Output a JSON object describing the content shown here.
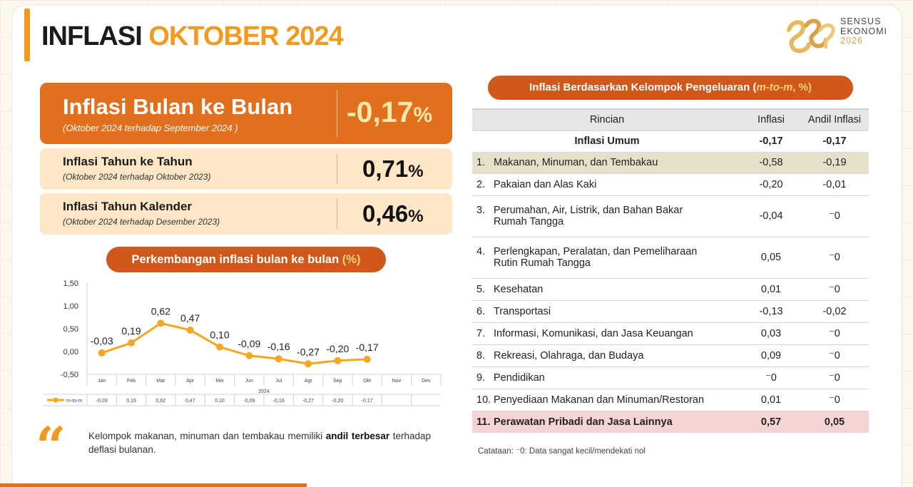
{
  "header": {
    "title_part1": "INFLASI",
    "title_part2": "OKTOBER 2024"
  },
  "logo": {
    "line1": "SENSUS",
    "line2": "EKONOMI",
    "line3": "2026"
  },
  "summary": {
    "mtm": {
      "label": "Inflasi Bulan ke Bulan",
      "sub": "(Oktober 2024 terhadap September 2024 )",
      "value": "-0,17",
      "unit": "%"
    },
    "yoy": {
      "label": "Inflasi Tahun ke Tahun",
      "sub": "(Oktober 2024 terhadap Oktober 2023)",
      "value": "0,71",
      "unit": "%"
    },
    "ytd": {
      "label": "Inflasi Tahun Kalender",
      "sub": "(Oktober 2024 terhadap Desember 2023)",
      "value": "0,46",
      "unit": "%"
    }
  },
  "chart_title": {
    "text": "Perkembangan inflasi bulan ke bulan",
    "unit": "(%)"
  },
  "chart_data": {
    "type": "line",
    "categories": [
      "Jan",
      "Feb",
      "Mar",
      "Apr",
      "Mei",
      "Jun",
      "Jul",
      "Agt",
      "Sep",
      "Okt",
      "Nov",
      "Des"
    ],
    "x_group_label": "2024",
    "series": [
      {
        "name": "m-to-m",
        "values": [
          -0.03,
          0.19,
          0.62,
          0.47,
          0.1,
          -0.09,
          -0.16,
          -0.27,
          -0.2,
          -0.17,
          null,
          null
        ],
        "labels": [
          "-0,03",
          "0,19",
          "0,62",
          "0,47",
          "0,10",
          "-0,09",
          "-0,16",
          "-0,27",
          "-0,20",
          "-0,17",
          "",
          ""
        ]
      }
    ],
    "ylim": [
      -0.5,
      1.5
    ],
    "yticks": [
      -0.5,
      0,
      0.5,
      1.0,
      1.5
    ],
    "ytick_labels": [
      "-0,50",
      "0,00",
      "0,50",
      "1,00",
      "1,50"
    ],
    "grid": false,
    "line_color": "#f5a623",
    "data_table": true
  },
  "quote": {
    "text_before": "Kelompok makanan, minuman dan tembakau memiliki ",
    "bold1": "andil",
    "bold2": "terbesar",
    "text_after": " terhadap deflasi bulanan."
  },
  "table_title": {
    "text": "Inflasi Berdasarkan Kelompok Pengeluaran (",
    "italic": "m-to-m",
    "suffix": ", %)"
  },
  "table": {
    "headers": [
      "Rincian",
      "Inflasi",
      "Andil Inflasi"
    ],
    "general": {
      "label": "Inflasi Umum",
      "inflasi": "-0,17",
      "andil": "-0,17"
    },
    "rows": [
      {
        "no": "1.",
        "name": "Makanan, Minuman, dan Tembakau",
        "inflasi": "-0,58",
        "andil": "-0,19"
      },
      {
        "no": "2.",
        "name": "Pakaian dan Alas Kaki",
        "inflasi": "-0,20",
        "andil": "-0,01"
      },
      {
        "no": "3.",
        "name": "Perumahan, Air, Listrik, dan Bahan Bakar Rumah Tangga",
        "inflasi": "-0,04",
        "andil": "⁻0"
      },
      {
        "no": "4.",
        "name": "Perlengkapan, Peralatan, dan Pemeliharaan Rutin Rumah Tangga",
        "inflasi": "0,05",
        "andil": "⁻0"
      },
      {
        "no": "5.",
        "name": "Kesehatan",
        "inflasi": "0,01",
        "andil": "⁻0"
      },
      {
        "no": "6.",
        "name": "Transportasi",
        "inflasi": "-0,13",
        "andil": "-0,02"
      },
      {
        "no": "7.",
        "name": "Informasi, Komunikasi, dan Jasa Keuangan",
        "inflasi": "0,03",
        "andil": "⁻0"
      },
      {
        "no": "8.",
        "name": "Rekreasi, Olahraga, dan Budaya",
        "inflasi": "0,09",
        "andil": "⁻0"
      },
      {
        "no": "9.",
        "name": "Pendidikan",
        "inflasi": "⁻0",
        "andil": "⁻0"
      },
      {
        "no": "10.",
        "name": "Penyediaan Makanan dan Minuman/Restoran",
        "inflasi": "0,01",
        "andil": "⁻0"
      },
      {
        "no": "11.",
        "name": "Perawatan Pribadi dan Jasa Lainnya",
        "inflasi": "0,57",
        "andil": "0,05"
      }
    ]
  },
  "note": "Catataan: ⁻0: Data sangat kecil/mendekati nol",
  "colors": {
    "accent": "#f39a1e",
    "dark_orange": "#e1701e",
    "pill": "#d2571b",
    "highlight_tan": "#e6dfc9",
    "highlight_pink": "#f7d4d4"
  }
}
